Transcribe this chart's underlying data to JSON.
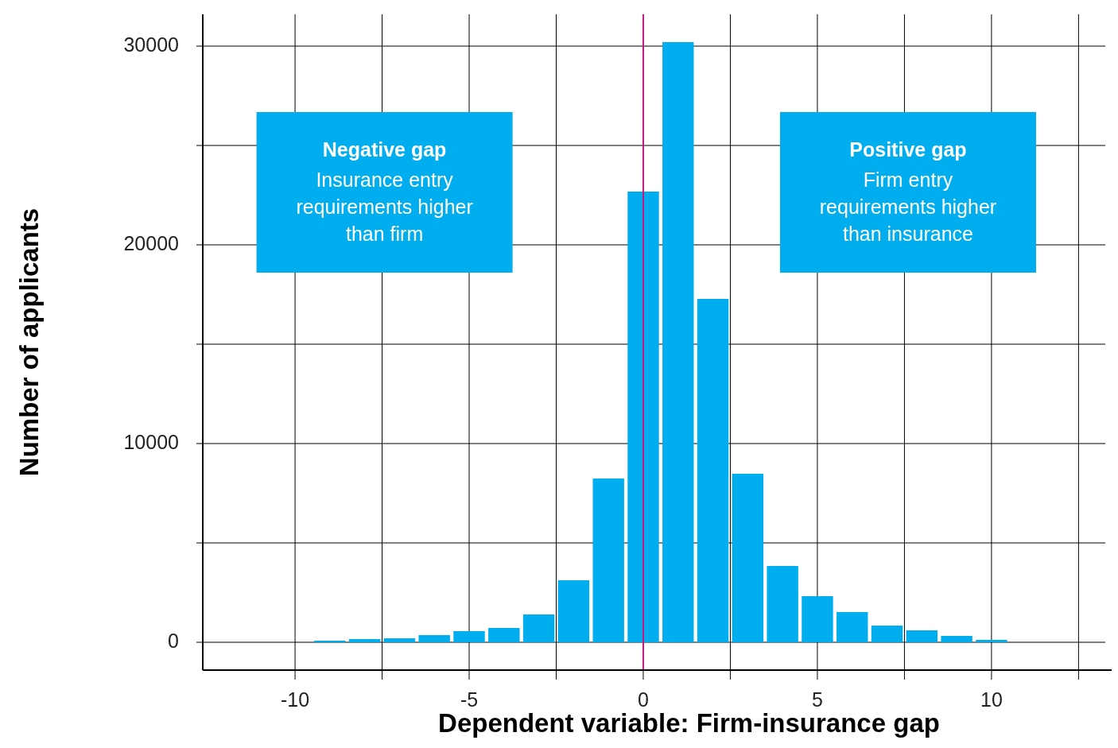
{
  "chart_data": {
    "type": "bar",
    "xlabel": "Dependent variable: Firm-insurance gap",
    "ylabel": "Number of applicants",
    "x": [
      -9,
      -8,
      -7,
      -6,
      -5,
      -4,
      -3,
      -2,
      -1,
      0,
      1,
      2,
      3,
      4,
      5,
      6,
      7,
      8,
      9,
      10
    ],
    "values": [
      80,
      160,
      200,
      360,
      560,
      720,
      1400,
      3120,
      8240,
      22680,
      30200,
      17280,
      8480,
      3840,
      2320,
      1520,
      840,
      600,
      320,
      120
    ],
    "color": "#00aeef",
    "xlim": [
      -12.65,
      13.45
    ],
    "xticks": [
      -10,
      {
        "value": -7.5,
        "label": null
      },
      -5,
      {
        "value": -2.5,
        "label": null
      },
      0,
      {
        "value": 2.5,
        "label": null
      },
      5,
      {
        "value": 7.5,
        "label": null
      },
      10,
      {
        "value": 12.5,
        "label": null
      }
    ],
    "ylim": [
      -1400,
      31600
    ],
    "yticks": [
      0,
      {
        "value": 5000,
        "label": null
      },
      10000,
      {
        "value": 15000,
        "label": null
      },
      20000,
      {
        "value": 25000,
        "label": null
      },
      30000
    ],
    "grid": true,
    "ref_lines": [
      {
        "axis": "x",
        "value": 0,
        "color": "#c8177f"
      }
    ],
    "annotations": [
      "Negative gap\nInsurance entry\nrequirements higher\nthan firm",
      "Positive gap\nFirm entry\nrequirements higher\nthan insurance"
    ]
  }
}
